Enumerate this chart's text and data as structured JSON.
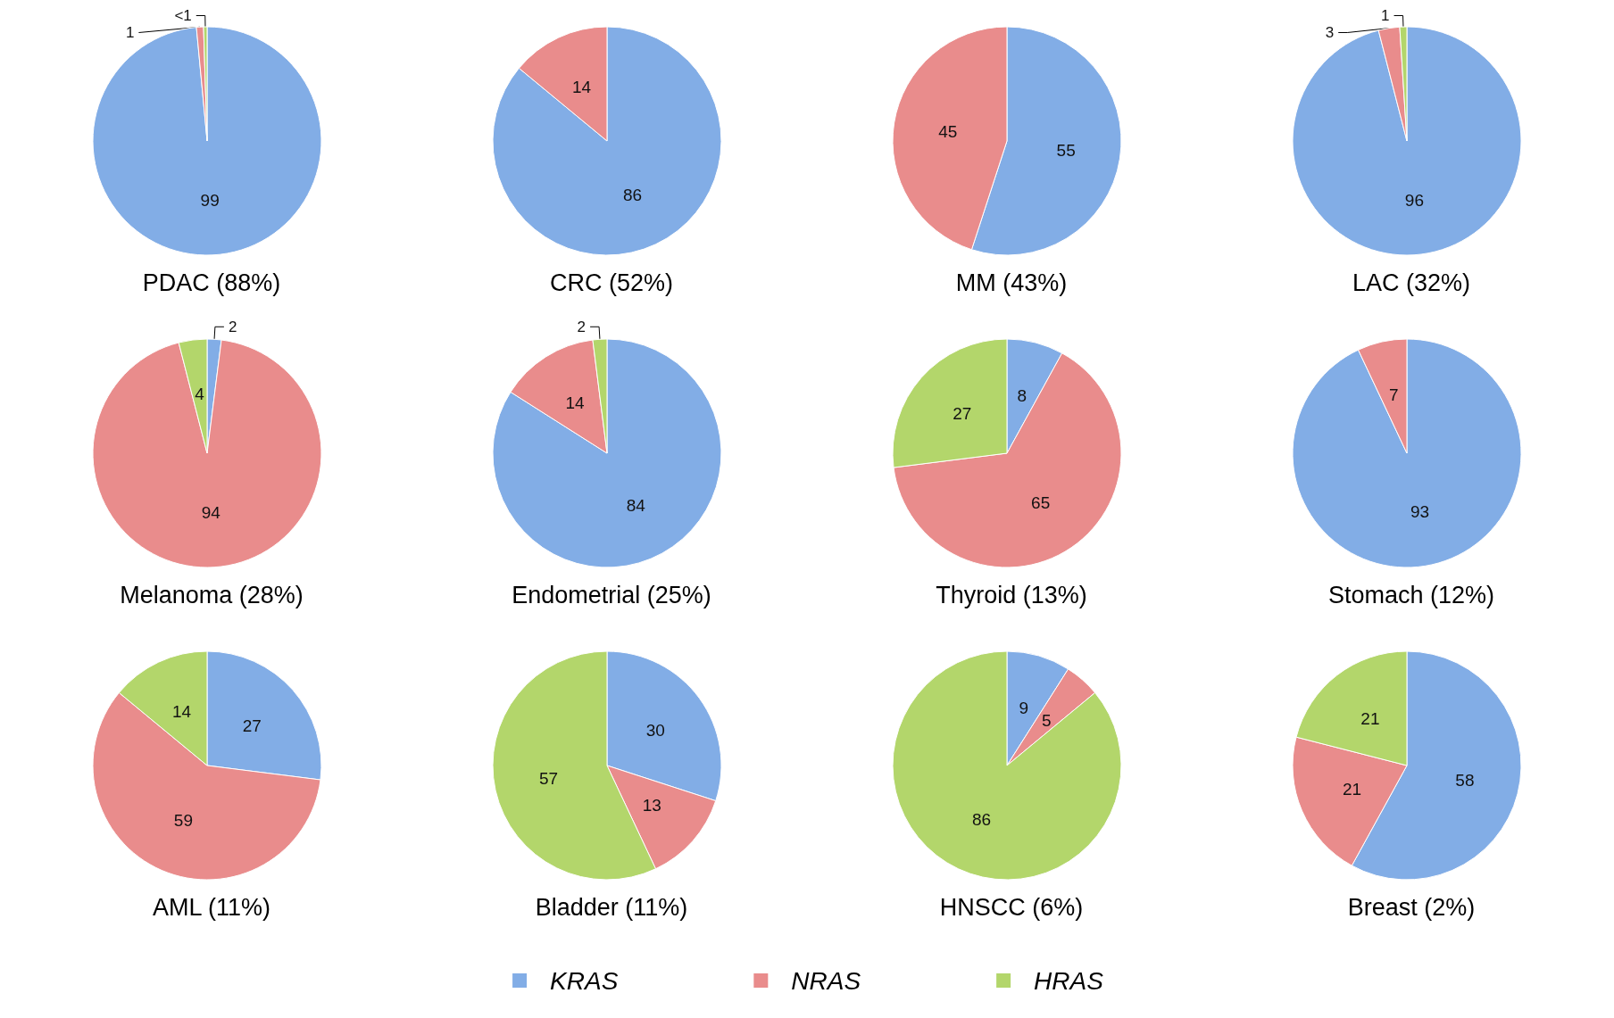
{
  "chart_data": {
    "type": "pie",
    "categories": [
      "KRAS",
      "NRAS",
      "HRAS"
    ],
    "colors": [
      "#82ade6",
      "#e98c8c",
      "#b3d66b"
    ],
    "legend": "bottom",
    "data_labels": true,
    "series": [
      {
        "name": "PDAC (88%)",
        "values": [
          99,
          1,
          0.5
        ],
        "value_labels": [
          "99",
          "1",
          "<1"
        ]
      },
      {
        "name": "CRC (52%)",
        "values": [
          86,
          14,
          null
        ]
      },
      {
        "name": "MM (43%)",
        "values": [
          55,
          45,
          null
        ]
      },
      {
        "name": "LAC (32%)",
        "values": [
          96,
          3,
          1
        ]
      },
      {
        "name": "Melanoma (28%)",
        "values": [
          2,
          94,
          4
        ]
      },
      {
        "name": "Endometrial (25%)",
        "values": [
          84,
          14,
          2
        ]
      },
      {
        "name": "Thyroid (13%)",
        "values": [
          8,
          65,
          27
        ]
      },
      {
        "name": "Stomach (12%)",
        "values": [
          93,
          7,
          null
        ]
      },
      {
        "name": "AML (11%)",
        "values": [
          27,
          59,
          14
        ]
      },
      {
        "name": "Bladder (11%)",
        "values": [
          30,
          13,
          57
        ]
      },
      {
        "name": "HNSCC (6%)",
        "values": [
          9,
          5,
          86
        ]
      },
      {
        "name": "Breast (2%)",
        "values": [
          58,
          21,
          21
        ]
      }
    ]
  }
}
